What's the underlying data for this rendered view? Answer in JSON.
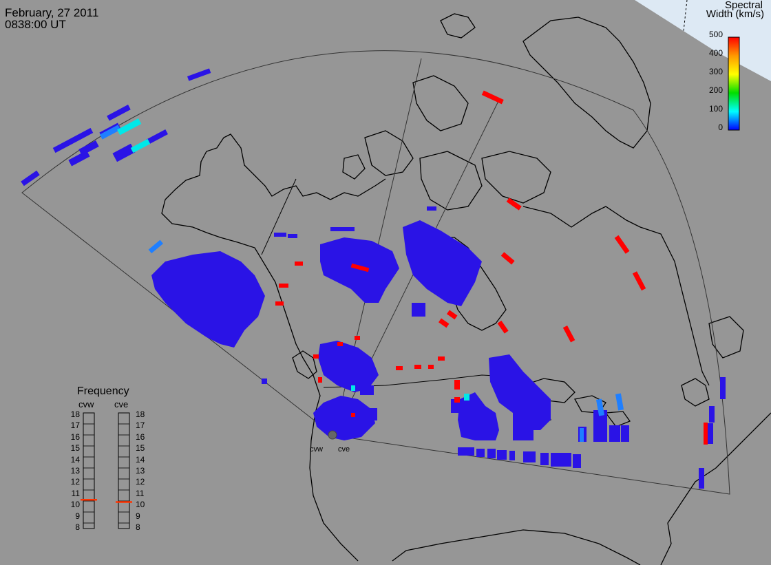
{
  "header": {
    "date": "February, 27 2011",
    "time": "0838:00 UT"
  },
  "colorbar": {
    "title_line1": "Spectral",
    "title_line2": "Width (km/s)",
    "ticks": [
      "500",
      "400",
      "300",
      "200",
      "100",
      "0"
    ],
    "colors": [
      "#ff0000",
      "#ff9900",
      "#ffff00",
      "#00dd00",
      "#00ffff",
      "#0000ff"
    ]
  },
  "frequency": {
    "title": "Frequency",
    "radars": [
      {
        "name": "cvw",
        "value_mhz": 10.8
      },
      {
        "name": "cve",
        "value_mhz": 10.6
      }
    ],
    "scale": [
      "18",
      "17",
      "16",
      "15",
      "14",
      "13",
      "12",
      "11",
      "10",
      "9",
      "8"
    ]
  },
  "radar_labels": [
    "cvw",
    "cve"
  ],
  "colors": {
    "background": "#969696",
    "low_width": "#2a13e6",
    "high_width": "#ff0000",
    "medium_width": "#1f7fff",
    "cyan_width": "#00e8e8",
    "coastline": "#000000",
    "ice_cap": "#dde9f4"
  }
}
